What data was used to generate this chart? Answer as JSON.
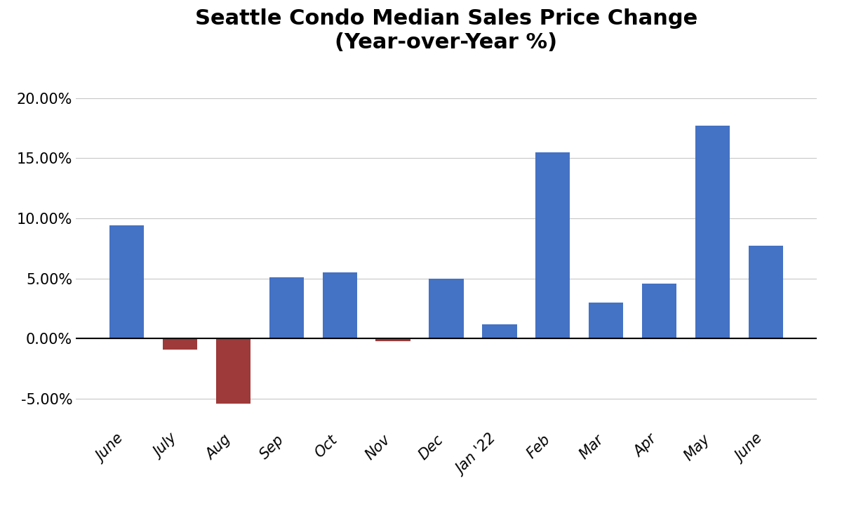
{
  "categories": [
    "June",
    "July",
    "Aug",
    "Sep",
    "Oct",
    "Nov",
    "Dec",
    "Jan '22",
    "Feb",
    "Mar",
    "Apr",
    "May",
    "June"
  ],
  "values": [
    0.094,
    -0.009,
    -0.054,
    0.051,
    0.055,
    -0.002,
    0.05,
    0.012,
    0.155,
    0.03,
    0.046,
    0.177,
    0.077
  ],
  "bar_colors_positive": "#4472C4",
  "bar_colors_negative": "#9E3A3A",
  "title_line1": "Seattle Condo Median Sales Price Change",
  "title_line2": "(Year-over-Year %)",
  "title_fontsize": 22,
  "tick_label_fontsize": 15,
  "ylim": [
    -0.075,
    0.225
  ],
  "yticks": [
    -0.05,
    0.0,
    0.05,
    0.1,
    0.15,
    0.2
  ],
  "background_color": "#ffffff",
  "bar_width": 0.65,
  "grid_color": "#c8c8c8",
  "zero_line_color": "#000000"
}
